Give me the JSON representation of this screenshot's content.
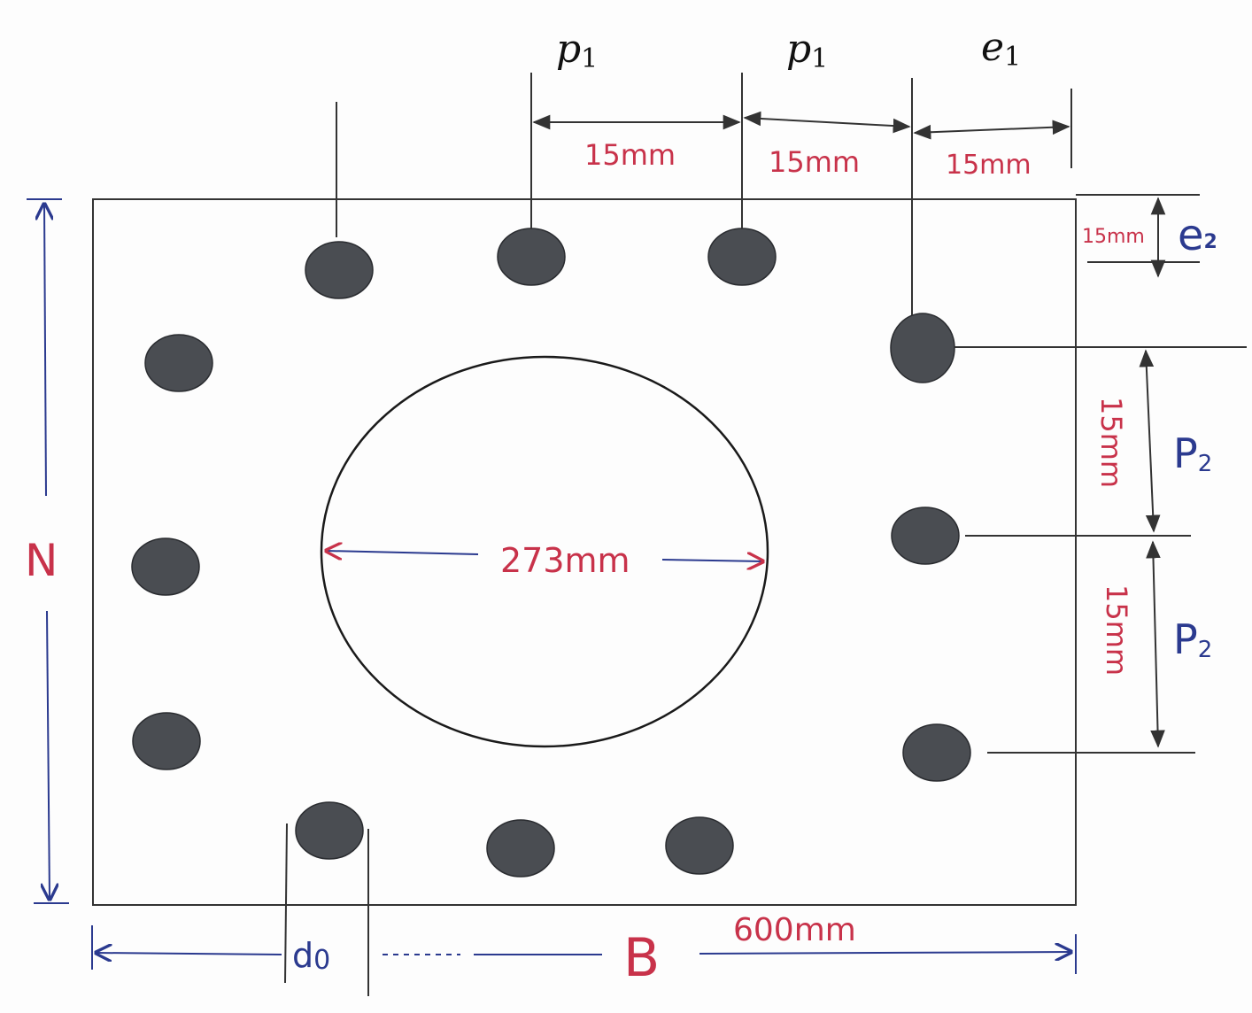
{
  "labels": {
    "p1_left": "p",
    "p1_left_sub": "1",
    "p1_right": "p",
    "p1_right_sub": "1",
    "e1": "e",
    "e1_sub": "1",
    "e2": "e",
    "e2_sub": "2",
    "p2_upper": "P",
    "p2_upper_sub": "2",
    "p2_lower": "P",
    "p2_lower_sub": "2",
    "n": "N",
    "b": "B",
    "d0": "d",
    "d0_sub": "0"
  },
  "dimensions": {
    "p1_left": "15mm",
    "p1_right": "15mm",
    "e1": "15mm",
    "e2": "15mm",
    "p2_upper": "15mm",
    "p2_lower": "15mm",
    "circle_diameter": "273mm",
    "width": "600mm"
  },
  "colors": {
    "plate_outline": "#1a1a1a",
    "hole_fill": "#4a4d52",
    "dimension_blue": "#2b3a8f",
    "dimension_red": "#c8324a"
  }
}
